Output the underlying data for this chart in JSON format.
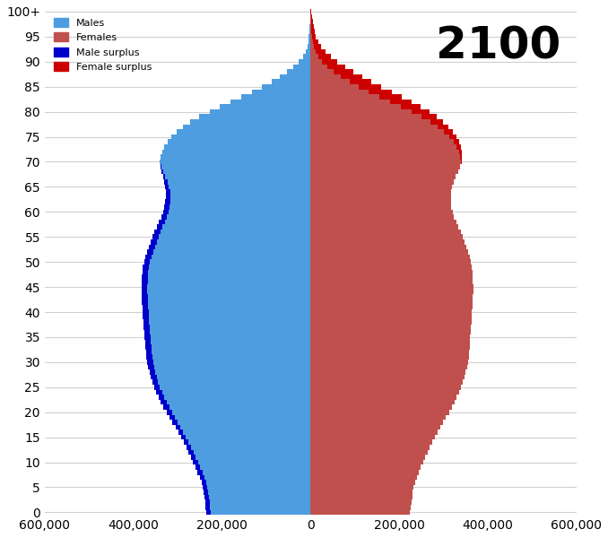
{
  "title": "2100",
  "legend_labels": [
    "Males",
    "Females",
    "Male surplus",
    "Female surplus"
  ],
  "male_color": "#4d9de0",
  "female_color": "#c0504d",
  "male_surplus_color": "#0000cd",
  "female_surplus_color": "#cc0000",
  "background_color": "#ffffff",
  "grid_color": "#d0d0d0",
  "xlim": [
    -600000,
    600000
  ],
  "xticks": [
    -600000,
    -400000,
    -200000,
    0,
    200000,
    400000,
    600000
  ],
  "xtick_labels": [
    "600,000",
    "400,000",
    "200,000",
    "0",
    "200,000",
    "400,000",
    "600,000"
  ],
  "ages": [
    0,
    1,
    2,
    3,
    4,
    5,
    6,
    7,
    8,
    9,
    10,
    11,
    12,
    13,
    14,
    15,
    16,
    17,
    18,
    19,
    20,
    21,
    22,
    23,
    24,
    25,
    26,
    27,
    28,
    29,
    30,
    31,
    32,
    33,
    34,
    35,
    36,
    37,
    38,
    39,
    40,
    41,
    42,
    43,
    44,
    45,
    46,
    47,
    48,
    49,
    50,
    51,
    52,
    53,
    54,
    55,
    56,
    57,
    58,
    59,
    60,
    61,
    62,
    63,
    64,
    65,
    66,
    67,
    68,
    69,
    70,
    71,
    72,
    73,
    74,
    75,
    76,
    77,
    78,
    79,
    80,
    81,
    82,
    83,
    84,
    85,
    86,
    87,
    88,
    89,
    90,
    91,
    92,
    93,
    94,
    95,
    96,
    97,
    98,
    99,
    100
  ],
  "males": [
    235000,
    237000,
    238000,
    240000,
    241000,
    243000,
    246000,
    250000,
    255000,
    260000,
    265000,
    270000,
    275000,
    280000,
    286000,
    292000,
    298000,
    305000,
    312000,
    318000,
    325000,
    332000,
    338000,
    343000,
    348000,
    353000,
    357000,
    360000,
    363000,
    366000,
    368000,
    370000,
    371000,
    372000,
    373000,
    374000,
    375000,
    376000,
    377000,
    378000,
    378000,
    379000,
    380000,
    380000,
    381000,
    381000,
    380000,
    380000,
    379000,
    378000,
    375000,
    372000,
    368000,
    364000,
    360000,
    356000,
    352000,
    347000,
    342000,
    337000,
    333000,
    330000,
    328000,
    327000,
    327000,
    328000,
    330000,
    333000,
    336000,
    338000,
    340000,
    338000,
    335000,
    330000,
    323000,
    314000,
    302000,
    288000,
    271000,
    251000,
    228000,
    204000,
    180000,
    156000,
    132000,
    109000,
    88000,
    69000,
    52000,
    38000,
    26000,
    17000,
    11000,
    7000,
    5000,
    3500,
    2500,
    1800,
    1200,
    700,
    350
  ],
  "females": [
    225000,
    227000,
    228000,
    230000,
    231000,
    233000,
    236000,
    240000,
    244000,
    249000,
    254000,
    259000,
    264000,
    269000,
    275000,
    281000,
    287000,
    294000,
    300000,
    306000,
    313000,
    319000,
    325000,
    330000,
    335000,
    340000,
    344000,
    347000,
    350000,
    353000,
    355000,
    357000,
    358000,
    359000,
    360000,
    361000,
    362000,
    363000,
    364000,
    365000,
    365000,
    366000,
    367000,
    367000,
    368000,
    368000,
    367000,
    367000,
    366000,
    365000,
    362000,
    359000,
    355000,
    351000,
    347000,
    343000,
    339000,
    334000,
    329000,
    324000,
    321000,
    318000,
    317000,
    317000,
    317000,
    320000,
    323000,
    328000,
    333000,
    337000,
    342000,
    342000,
    342000,
    340000,
    336000,
    330000,
    322000,
    312000,
    300000,
    285000,
    268000,
    249000,
    228000,
    206000,
    183000,
    160000,
    138000,
    117000,
    97000,
    78000,
    61000,
    46000,
    34000,
    24000,
    17000,
    12000,
    9000,
    7000,
    5500,
    3800,
    2500
  ]
}
